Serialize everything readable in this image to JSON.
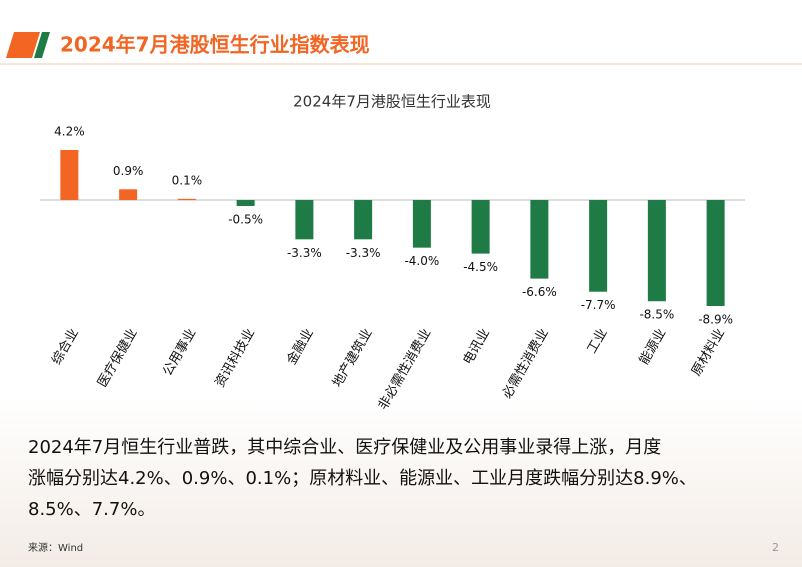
{
  "header": {
    "title": "2024年7月港股恒生行业指数表现"
  },
  "chart_data": {
    "type": "bar",
    "title": "2024年7月港股恒生行业表现",
    "categories": [
      "综合业",
      "医疗保健业",
      "公用事业",
      "资讯科技业",
      "金融业",
      "地产建筑业",
      "非必需性消费业",
      "电讯业",
      "必需性消费业",
      "工业",
      "能源业",
      "原材料业"
    ],
    "values": [
      4.2,
      0.9,
      0.1,
      -0.5,
      -3.3,
      -3.3,
      -4.0,
      -4.5,
      -6.6,
      -7.7,
      -8.5,
      -8.9
    ],
    "value_labels": [
      "4.2%",
      "0.9%",
      "0.1%",
      "-0.5%",
      "-3.3%",
      "-3.3%",
      "-4.0%",
      "-4.5%",
      "-6.6%",
      "-7.7%",
      "-8.5%",
      "-8.9%"
    ],
    "positive_color": "#f26522",
    "negative_color": "#1e7b45"
  },
  "summary": [
    "2024年7月恒生行业普跌，其中综合业、医疗保健业及公用事业录得上涨，月度",
    "涨幅分别达4.2%、0.9%、0.1%；原材料业、能源业、工业月度跌幅分别达8.9%、",
    "8.5%、7.7%。"
  ],
  "footer": {
    "source": "来源：Wind",
    "page": "2"
  }
}
